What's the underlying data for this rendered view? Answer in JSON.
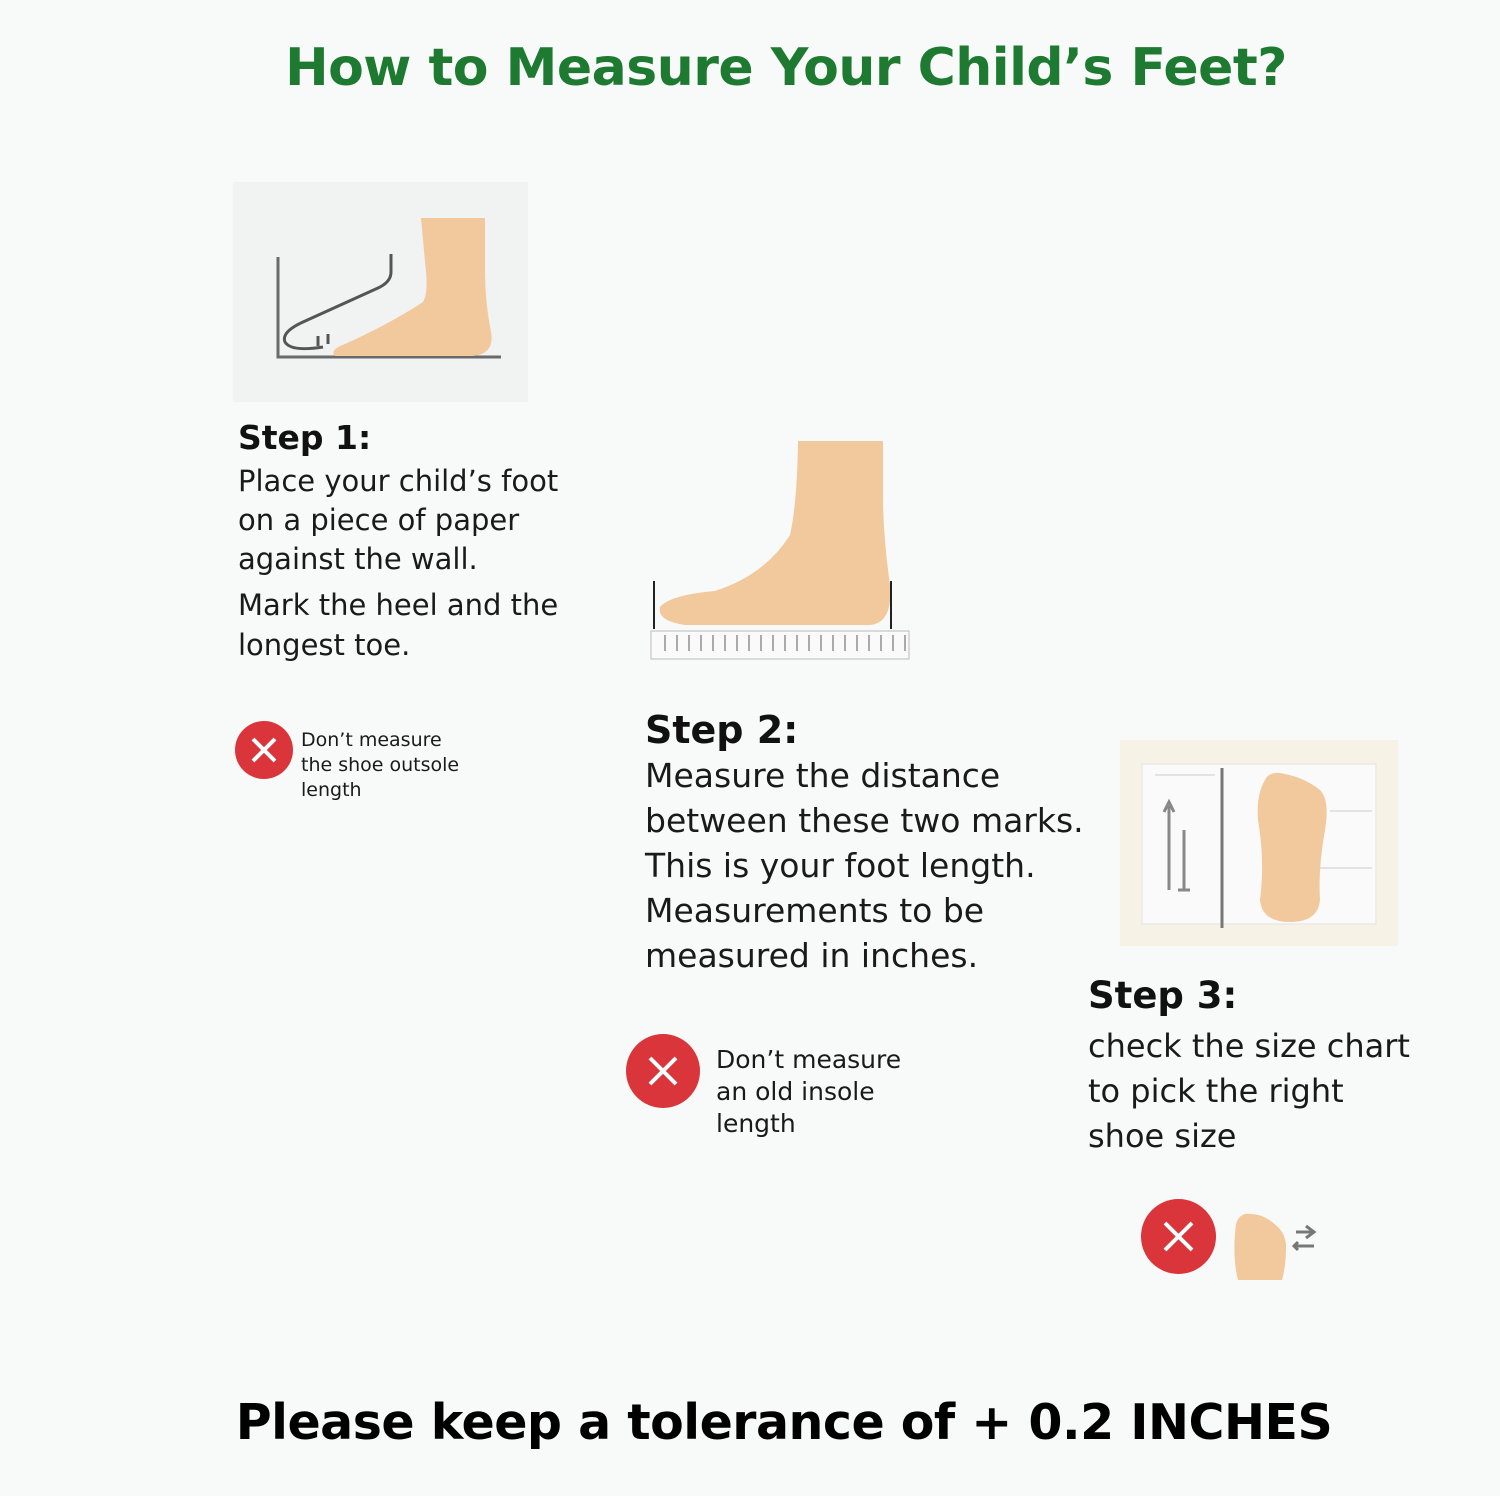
{
  "title": "How to Measure Your Child’s Feet?",
  "colors": {
    "title_green": "#1d7a30",
    "warning_red": "#d9353a",
    "skin": "#f2c99c"
  },
  "steps": [
    {
      "heading": "Step 1:",
      "lines": [
        "Place your child’s foot",
        "on a piece of paper",
        "against the wall.",
        "Mark the heel and the",
        "longest toe."
      ],
      "warning_icon": "x-circle-icon",
      "warning_lines": [
        "Don’t measure",
        "the shoe outsole",
        "length"
      ]
    },
    {
      "heading": "Step 2:",
      "lines": [
        "Measure the distance",
        "between these two marks.",
        "This is your foot length.",
        "Measurements to be",
        "measured in inches."
      ],
      "warning_icon": "x-circle-icon",
      "warning_lines": [
        "Don’t measure",
        "an old insole",
        "length"
      ]
    },
    {
      "heading": "Step 3:",
      "lines": [
        "check the size chart",
        "to pick the right",
        "shoe size"
      ],
      "warning_icon": "x-circle-icon"
    }
  ],
  "footer": "Please keep a tolerance of + 0.2 INCHES"
}
